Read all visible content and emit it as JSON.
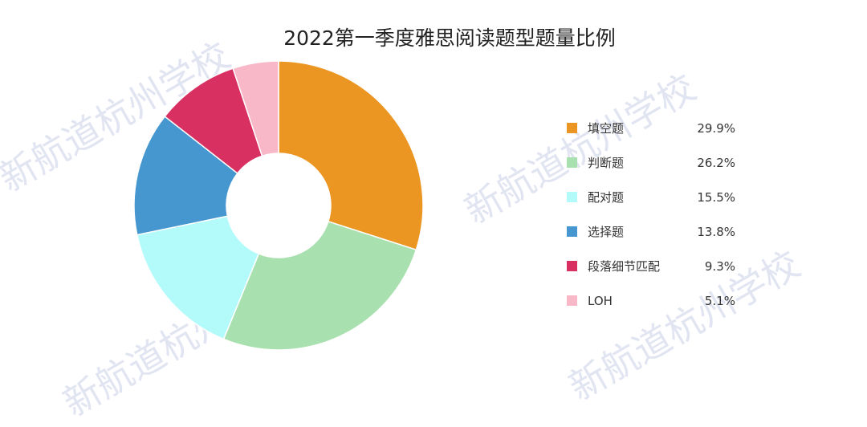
{
  "watermark": "新航道杭州学校",
  "chart_data": {
    "type": "pie",
    "donut": true,
    "title": "2022第一季度雅思阅读题型题量比例",
    "legend_position": "right",
    "slices": [
      {
        "label": "填空题",
        "value": 29.9,
        "value_label": "29.9%",
        "color": "#EB9623"
      },
      {
        "label": "判断题",
        "value": 26.2,
        "value_label": "26.2%",
        "color": "#A9E0AF"
      },
      {
        "label": "配对题",
        "value": 15.5,
        "value_label": "15.5%",
        "color": "#B3FBFB"
      },
      {
        "label": "选择题",
        "value": 13.8,
        "value_label": "13.8%",
        "color": "#4697D0"
      },
      {
        "label": "段落细节匹配",
        "value": 9.3,
        "value_label": "9.3%",
        "color": "#D83061"
      },
      {
        "label": "LOH",
        "value": 5.1,
        "value_label": "5.1%",
        "color": "#F9B8C8"
      }
    ]
  }
}
